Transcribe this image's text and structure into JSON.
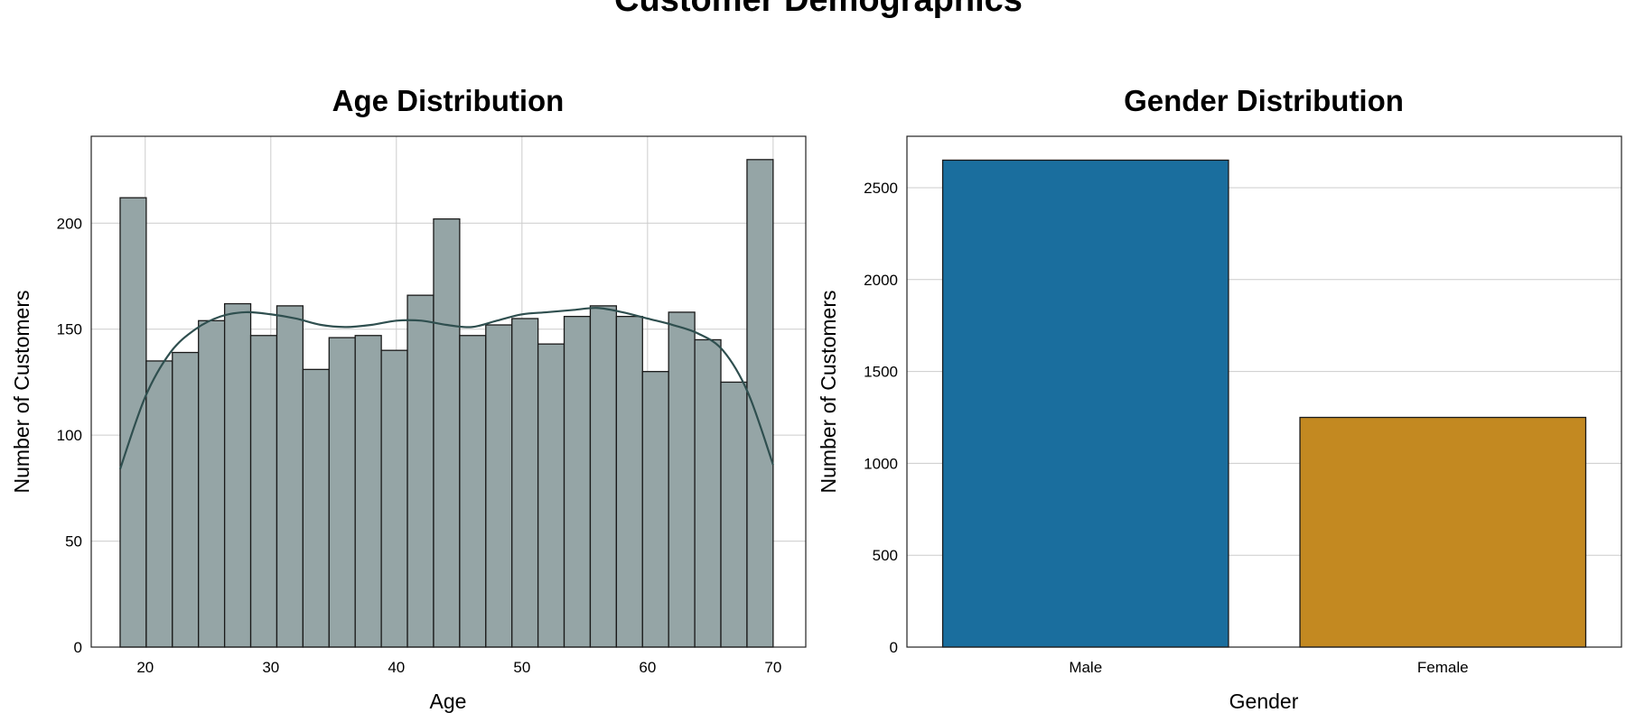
{
  "figure": {
    "title": "Customer Demographics"
  },
  "chart_data": [
    {
      "type": "bar",
      "subtype": "histogram",
      "title": "Age Distribution",
      "xlabel": "Age",
      "ylabel": "Number of Customers",
      "xlim": [
        15.7,
        72.6
      ],
      "ylim": [
        0,
        241
      ],
      "xticks": [
        20,
        30,
        40,
        50,
        60,
        70
      ],
      "yticks": [
        0,
        50,
        100,
        150,
        200
      ],
      "bin_start": 18,
      "bin_end": 70,
      "bar_color": "#95a5a6",
      "edge_color": "#1a1a1a",
      "values": [
        212,
        135,
        139,
        154,
        162,
        147,
        161,
        131,
        146,
        147,
        140,
        166,
        202,
        147,
        152,
        155,
        143,
        156,
        161,
        156,
        130,
        158,
        145,
        125,
        230
      ],
      "kde": {
        "color": "#2f4f4f",
        "x": [
          18,
          20,
          22,
          24,
          26,
          28,
          30,
          32,
          34,
          36,
          38,
          40,
          42,
          44,
          46,
          48,
          50,
          52,
          54,
          56,
          58,
          60,
          62,
          64,
          66,
          68,
          70
        ],
        "y": [
          84,
          118,
          139,
          150,
          156,
          158,
          157,
          155,
          152,
          151,
          152,
          154,
          154,
          152,
          151,
          154,
          157,
          158,
          159,
          160,
          158,
          155,
          152,
          148,
          140,
          120,
          86
        ]
      },
      "grid": true
    },
    {
      "type": "bar",
      "title": "Gender Distribution",
      "xlabel": "Gender",
      "ylabel": "Number of Customers",
      "categories": [
        "Male",
        "Female"
      ],
      "values": [
        2650,
        1250
      ],
      "colors": [
        "#1a6e9e",
        "#c38921"
      ],
      "ylim": [
        0,
        2780
      ],
      "yticks": [
        0,
        500,
        1000,
        1500,
        2000,
        2500
      ],
      "grid": true
    }
  ]
}
